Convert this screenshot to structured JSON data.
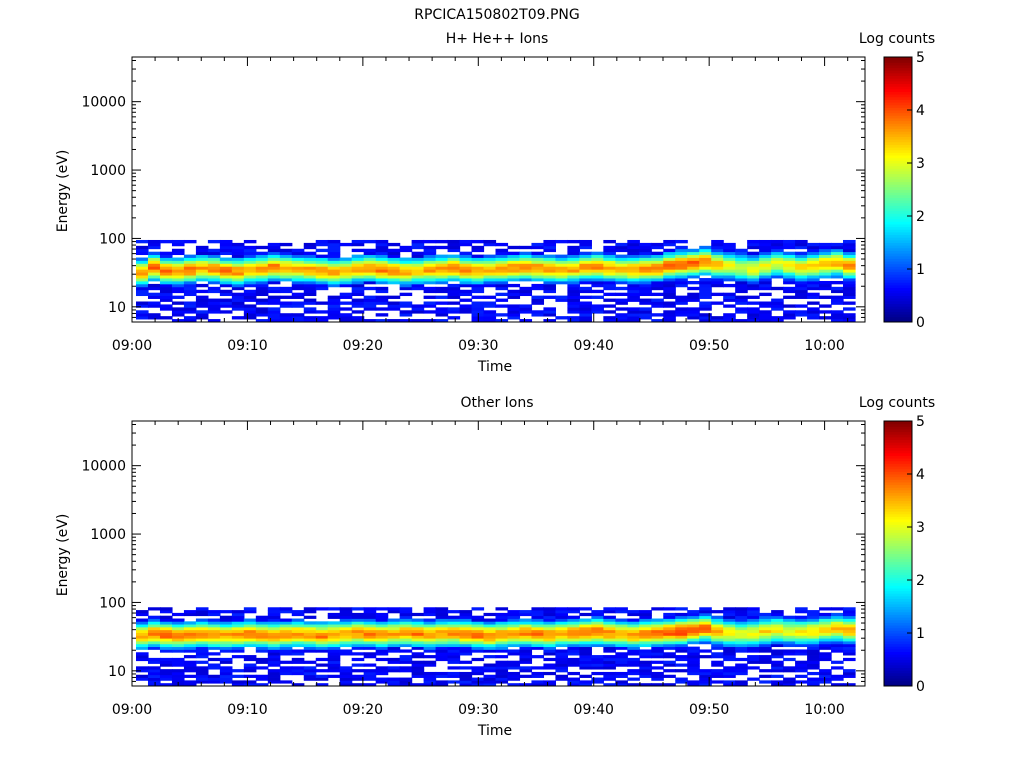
{
  "figure": {
    "title": "RPCICA150802T09.PNG"
  },
  "colors": {
    "colormap": [
      "#00007f",
      "#0000ff",
      "#0080ff",
      "#00ffff",
      "#80ff80",
      "#ffff00",
      "#ff8000",
      "#ff0000",
      "#7f0000"
    ],
    "background": "#ffffff",
    "axis": "#000000"
  },
  "chart_data": [
    {
      "type": "heatmap",
      "title": "H+ He++ Ions",
      "xlabel": "Time",
      "ylabel": "Energy (eV)",
      "x_tick_labels": [
        "09:00",
        "09:10",
        "09:20",
        "09:30",
        "09:40",
        "09:50",
        "10:00"
      ],
      "x_range": [
        "09:00",
        "10:03"
      ],
      "y_scale": "log",
      "y_range": [
        6,
        45000
      ],
      "y_tick_labels": [
        "10",
        "100",
        "1000",
        "10000"
      ],
      "colorbar": {
        "label": "Log counts",
        "range": [
          0,
          5
        ],
        "tick_labels": [
          "0",
          "1",
          "2",
          "3",
          "4",
          "5"
        ]
      },
      "description_data": {
        "time_bins": 60,
        "energy_band_eV": [
          6,
          95
        ],
        "peak_energy_eV": [
          32,
          38,
          34,
          33,
          35,
          37,
          36,
          34,
          33,
          35,
          36,
          38,
          37,
          36,
          35,
          34,
          33,
          34,
          36,
          37,
          35,
          34,
          33,
          34,
          35,
          36,
          37,
          35,
          34,
          35,
          36,
          37,
          38,
          37,
          36,
          35,
          36,
          38,
          39,
          37,
          36,
          35,
          36,
          37,
          40,
          42,
          44,
          46,
          42,
          40,
          38,
          36,
          40,
          43,
          40,
          38,
          40,
          42,
          44,
          40
        ],
        "peak_log_counts": [
          3.6,
          3.9,
          3.8,
          3.7,
          3.8,
          3.6,
          3.7,
          3.8,
          3.7,
          3.6,
          3.7,
          3.8,
          3.6,
          3.5,
          3.6,
          3.7,
          3.6,
          3.5,
          3.6,
          3.7,
          3.8,
          3.7,
          3.6,
          3.5,
          3.6,
          3.7,
          3.8,
          3.7,
          3.6,
          3.5,
          3.6,
          3.7,
          3.8,
          3.7,
          3.6,
          3.5,
          3.6,
          3.7,
          3.8,
          3.6,
          3.5,
          3.6,
          3.7,
          3.8,
          3.9,
          4.0,
          3.9,
          3.8,
          3.5,
          3.2,
          3.0,
          3.2,
          3.1,
          3.0,
          3.2,
          3.3,
          3.4,
          3.5,
          3.6,
          3.7
        ]
      }
    },
    {
      "type": "heatmap",
      "title": "Other Ions",
      "xlabel": "Time",
      "ylabel": "Energy (eV)",
      "x_tick_labels": [
        "09:00",
        "09:10",
        "09:20",
        "09:30",
        "09:40",
        "09:50",
        "10:00"
      ],
      "x_range": [
        "09:00",
        "10:03"
      ],
      "y_scale": "log",
      "y_range": [
        6,
        45000
      ],
      "y_tick_labels": [
        "10",
        "100",
        "1000",
        "10000"
      ],
      "colorbar": {
        "label": "Log counts",
        "range": [
          0,
          5
        ],
        "tick_labels": [
          "0",
          "1",
          "2",
          "3",
          "4",
          "5"
        ]
      },
      "description_data": {
        "time_bins": 60,
        "energy_band_eV": [
          6,
          85
        ],
        "peak_energy_eV": [
          33,
          35,
          34,
          33,
          34,
          35,
          34,
          33,
          34,
          35,
          34,
          33,
          34,
          35,
          34,
          33,
          34,
          35,
          36,
          35,
          34,
          35,
          36,
          35,
          34,
          35,
          36,
          35,
          34,
          33,
          34,
          35,
          36,
          35,
          34,
          35,
          36,
          37,
          38,
          36,
          35,
          34,
          35,
          36,
          37,
          38,
          40,
          42,
          38,
          36,
          35,
          36,
          38,
          40,
          38,
          37,
          38,
          40,
          42,
          40
        ],
        "peak_log_counts": [
          3.6,
          3.8,
          3.9,
          3.8,
          3.7,
          3.8,
          3.7,
          3.6,
          3.7,
          3.8,
          3.7,
          3.8,
          3.7,
          3.6,
          3.7,
          3.8,
          3.7,
          3.6,
          3.7,
          3.8,
          3.7,
          3.6,
          3.7,
          3.8,
          3.7,
          3.6,
          3.7,
          3.8,
          3.9,
          3.8,
          3.7,
          3.6,
          3.7,
          3.8,
          3.7,
          3.6,
          3.7,
          3.8,
          3.9,
          3.7,
          3.6,
          3.7,
          3.8,
          3.9,
          4.0,
          4.1,
          4.0,
          3.9,
          3.5,
          3.2,
          3.0,
          3.1,
          3.3,
          3.2,
          3.1,
          3.2,
          3.3,
          3.4,
          3.5,
          3.6
        ]
      }
    }
  ]
}
